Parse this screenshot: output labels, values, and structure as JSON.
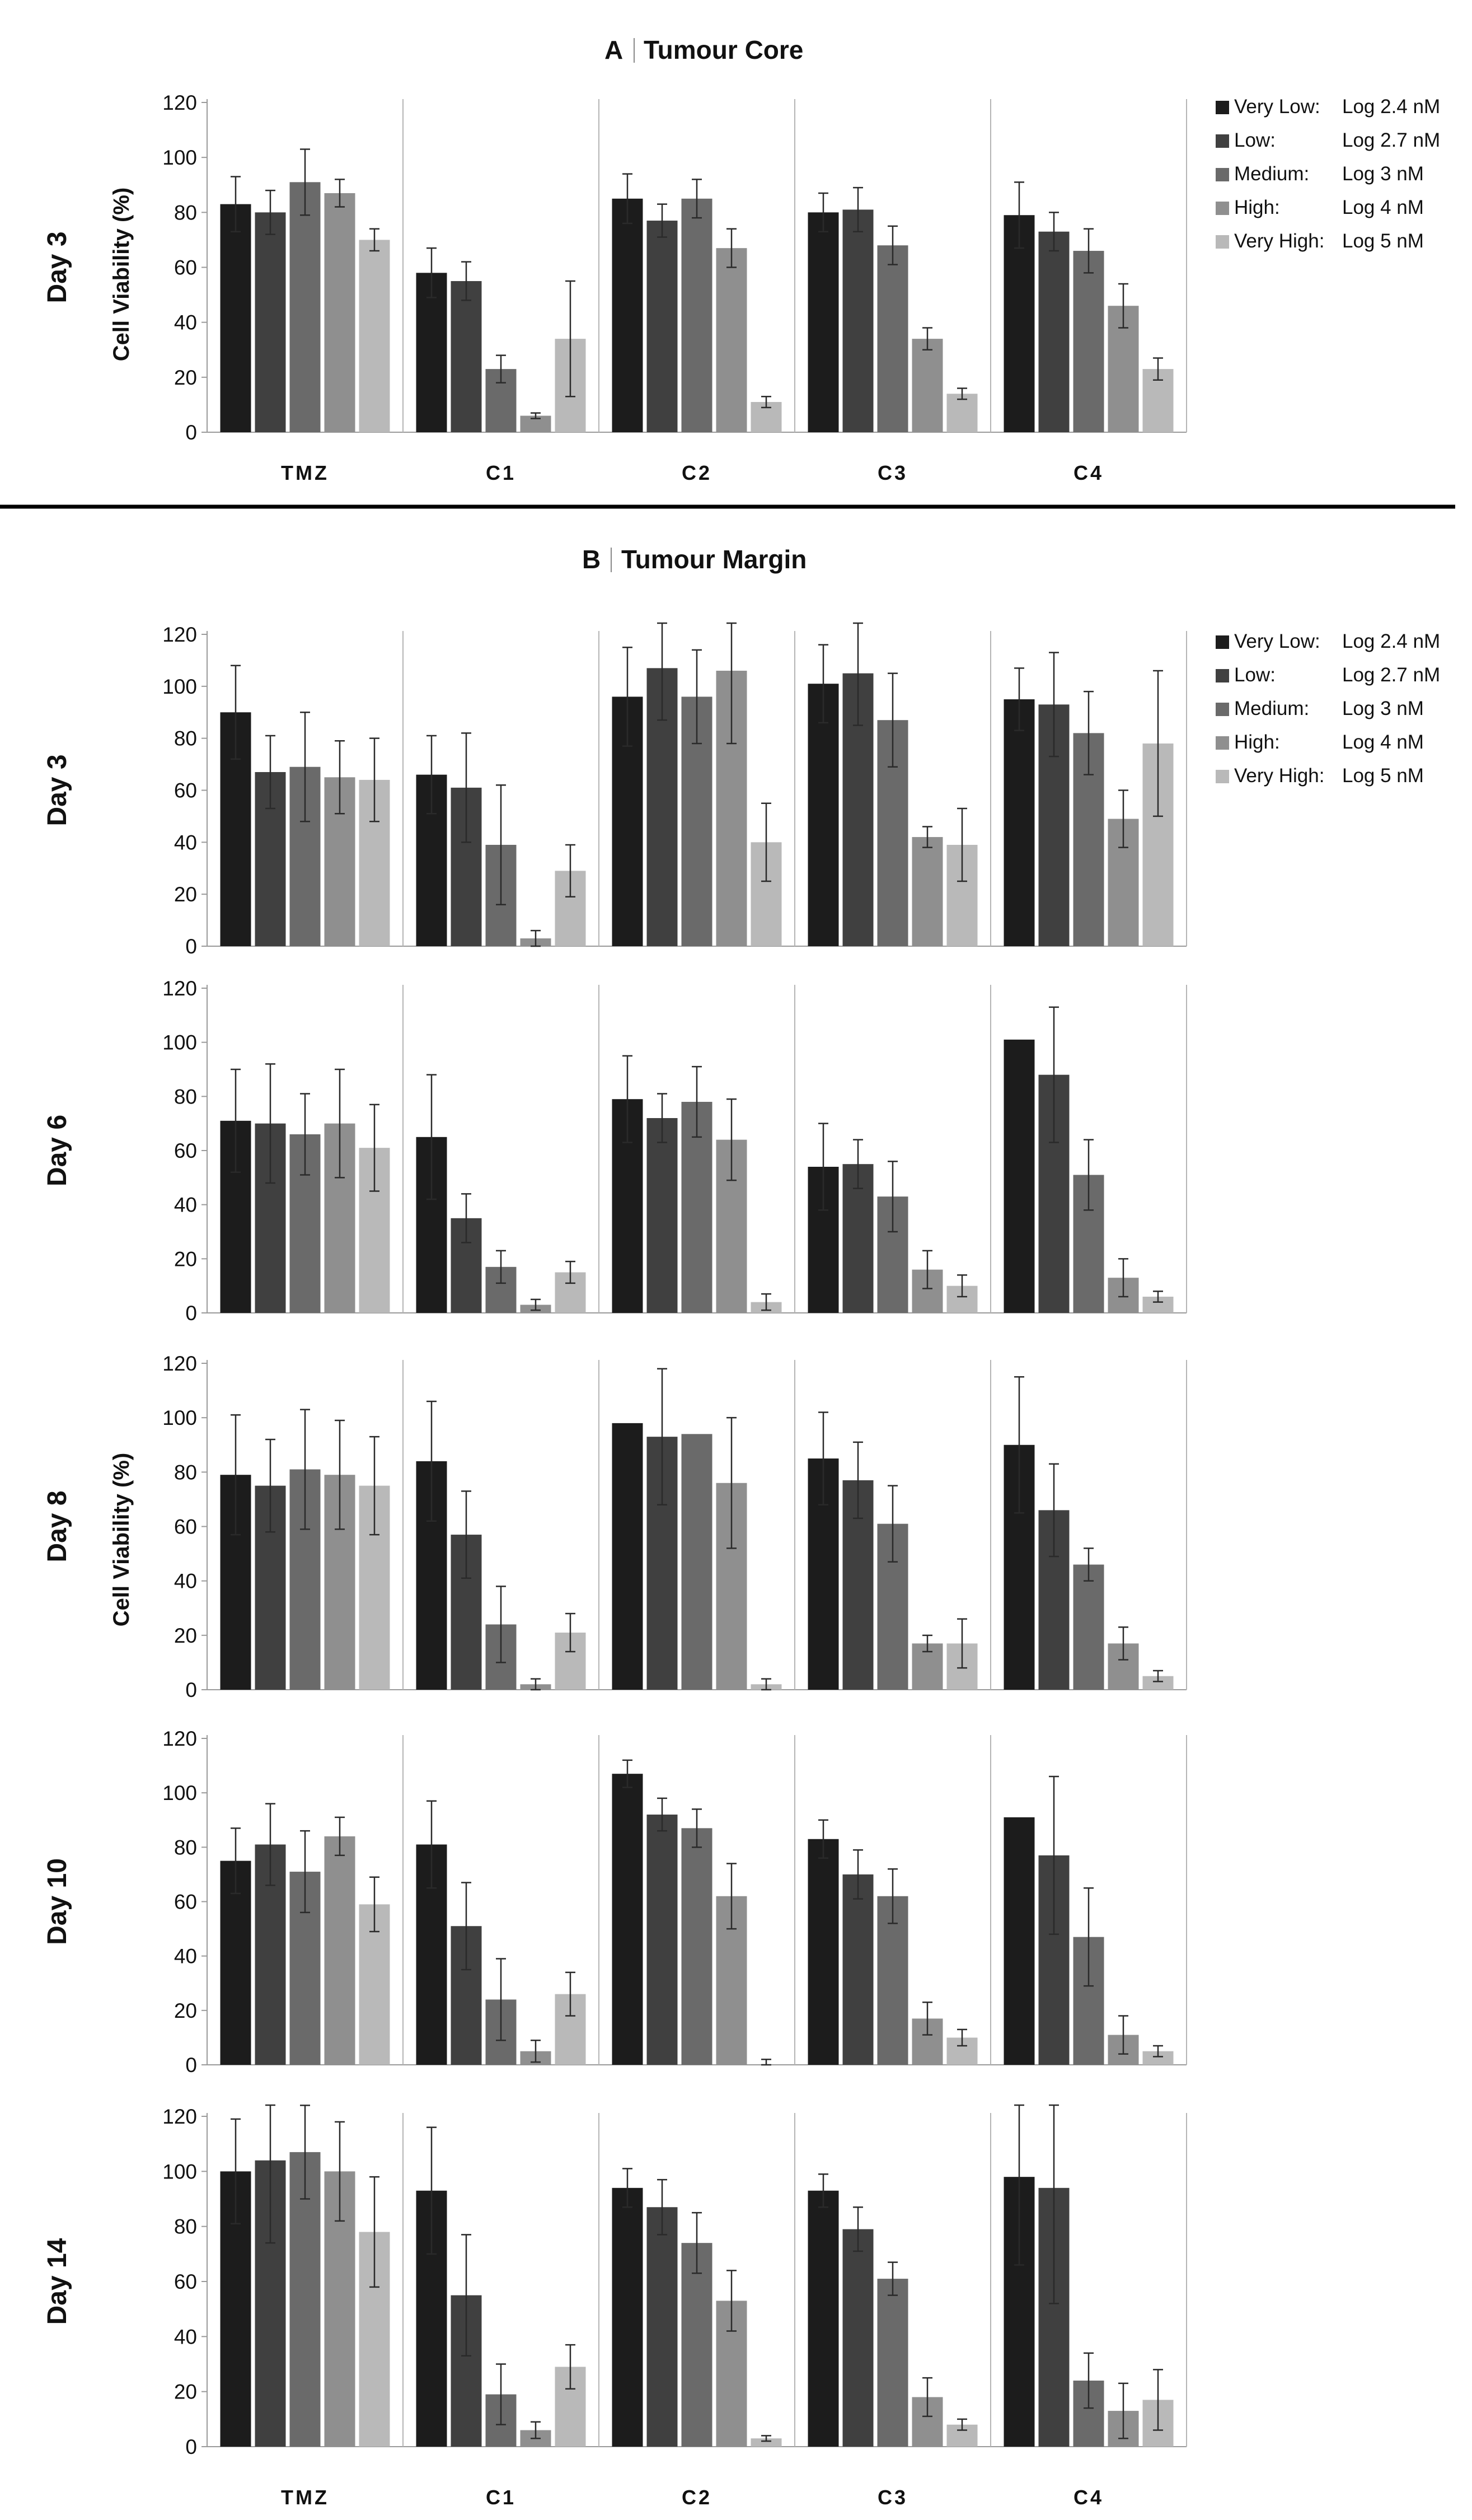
{
  "figure": {
    "legend_entries": [
      {
        "name": "Very Low:",
        "dose": "Log 2.4 nM"
      },
      {
        "name": "Low:",
        "dose": "Log 2.7 nM"
      },
      {
        "name": "Medium:",
        "dose": "Log 3 nM"
      },
      {
        "name": "High:",
        "dose": "Log 4 nM"
      },
      {
        "name": "Very High:",
        "dose": "Log 5 nM"
      }
    ],
    "series_colors": [
      "#1c1c1c",
      "#404040",
      "#6a6a6a",
      "#8f8f8f",
      "#b9b9b9"
    ],
    "categories": [
      "TMZ",
      "C1",
      "C2",
      "C3",
      "C4"
    ],
    "y_ticks": [
      0,
      20,
      40,
      60,
      80,
      100,
      120
    ],
    "ylabel": "Cell Viability (%)"
  },
  "chart_data": [
    {
      "type": "bar",
      "panel_label": "A",
      "title": "Tumour Core",
      "row_label": "Day 3",
      "ylabel": "Cell Viability (%)",
      "ylim": [
        0,
        120
      ],
      "categories": [
        "TMZ",
        "C1",
        "C2",
        "C3",
        "C4"
      ],
      "series": [
        {
          "name": "Very Low: Log 2.4 nM",
          "values": [
            83,
            58,
            85,
            80,
            79
          ],
          "errors": [
            10,
            9,
            9,
            7,
            12
          ]
        },
        {
          "name": "Low: Log 2.7 nM",
          "values": [
            80,
            55,
            77,
            81,
            73
          ],
          "errors": [
            8,
            7,
            6,
            8,
            7
          ]
        },
        {
          "name": "Medium: Log 3 nM",
          "values": [
            91,
            23,
            85,
            68,
            66
          ],
          "errors": [
            12,
            5,
            7,
            7,
            8
          ]
        },
        {
          "name": "High: Log 4 nM",
          "values": [
            87,
            6,
            67,
            34,
            46
          ],
          "errors": [
            5,
            1,
            7,
            4,
            8
          ]
        },
        {
          "name": "Very High: Log 5 nM",
          "values": [
            70,
            34,
            11,
            14,
            23
          ],
          "errors": [
            4,
            21,
            2,
            2,
            4
          ]
        }
      ]
    },
    {
      "type": "bar",
      "panel_label": "B",
      "title": "Tumour Margin",
      "row_label": "Day 3",
      "ylim": [
        0,
        120
      ],
      "categories": [
        "TMZ",
        "C1",
        "C2",
        "C3",
        "C4"
      ],
      "series": [
        {
          "name": "Very Low: Log 2.4 nM",
          "values": [
            90,
            66,
            96,
            101,
            95
          ],
          "errors": [
            18,
            15,
            19,
            15,
            12
          ]
        },
        {
          "name": "Low: Log 2.7 nM",
          "values": [
            67,
            61,
            107,
            105,
            93
          ],
          "errors": [
            14,
            21,
            20,
            20,
            20
          ]
        },
        {
          "name": "Medium: Log 3 nM",
          "values": [
            69,
            39,
            96,
            87,
            82
          ],
          "errors": [
            21,
            23,
            18,
            18,
            16
          ]
        },
        {
          "name": "High: Log 4 nM",
          "values": [
            65,
            3,
            106,
            42,
            49
          ],
          "errors": [
            14,
            3,
            28,
            4,
            11
          ]
        },
        {
          "name": "Very High: Log 5 nM",
          "values": [
            64,
            29,
            40,
            39,
            78
          ],
          "errors": [
            16,
            10,
            15,
            14,
            28
          ]
        }
      ]
    },
    {
      "type": "bar",
      "row_label": "Day 6",
      "ylim": [
        0,
        120
      ],
      "categories": [
        "TMZ",
        "C1",
        "C2",
        "C3",
        "C4"
      ],
      "series": [
        {
          "name": "Very Low: Log 2.4 nM",
          "values": [
            71,
            65,
            79,
            54,
            101
          ],
          "errors": [
            19,
            23,
            16,
            16,
            0
          ]
        },
        {
          "name": "Low: Log 2.7 nM",
          "values": [
            70,
            35,
            72,
            55,
            88
          ],
          "errors": [
            22,
            9,
            9,
            9,
            25
          ]
        },
        {
          "name": "Medium: Log 3 nM",
          "values": [
            66,
            17,
            78,
            43,
            51
          ],
          "errors": [
            15,
            6,
            13,
            13,
            13
          ]
        },
        {
          "name": "High: Log 4 nM",
          "values": [
            70,
            3,
            64,
            16,
            13
          ],
          "errors": [
            20,
            2,
            15,
            7,
            7
          ]
        },
        {
          "name": "Very High: Log 5 nM",
          "values": [
            61,
            15,
            4,
            10,
            6
          ],
          "errors": [
            16,
            4,
            3,
            4,
            2
          ]
        }
      ]
    },
    {
      "type": "bar",
      "row_label": "Day 8",
      "ylabel": "Cell Viability (%)",
      "ylim": [
        0,
        120
      ],
      "categories": [
        "TMZ",
        "C1",
        "C2",
        "C3",
        "C4"
      ],
      "series": [
        {
          "name": "Very Low: Log 2.4 nM",
          "values": [
            79,
            84,
            98,
            85,
            90
          ],
          "errors": [
            22,
            22,
            0,
            17,
            25
          ]
        },
        {
          "name": "Low: Log 2.7 nM",
          "values": [
            75,
            57,
            93,
            77,
            66
          ],
          "errors": [
            17,
            16,
            25,
            14,
            17
          ]
        },
        {
          "name": "Medium: Log 3 nM",
          "values": [
            81,
            24,
            94,
            61,
            46
          ],
          "errors": [
            22,
            14,
            0,
            14,
            6
          ]
        },
        {
          "name": "High: Log 4 nM",
          "values": [
            79,
            2,
            76,
            17,
            17
          ],
          "errors": [
            20,
            2,
            24,
            3,
            6
          ]
        },
        {
          "name": "Very High: Log 5 nM",
          "values": [
            75,
            21,
            2,
            17,
            5
          ],
          "errors": [
            18,
            7,
            2,
            9,
            2
          ]
        }
      ]
    },
    {
      "type": "bar",
      "row_label": "Day 10",
      "ylim": [
        0,
        120
      ],
      "categories": [
        "TMZ",
        "C1",
        "C2",
        "C3",
        "C4"
      ],
      "series": [
        {
          "name": "Very Low: Log 2.4 nM",
          "values": [
            75,
            81,
            107,
            83,
            91
          ],
          "errors": [
            12,
            16,
            5,
            7,
            0
          ]
        },
        {
          "name": "Low: Log 2.7 nM",
          "values": [
            81,
            51,
            92,
            70,
            77
          ],
          "errors": [
            15,
            16,
            6,
            9,
            29
          ]
        },
        {
          "name": "Medium: Log 3 nM",
          "values": [
            71,
            24,
            87,
            62,
            47
          ],
          "errors": [
            15,
            15,
            7,
            10,
            18
          ]
        },
        {
          "name": "High: Log 4 nM",
          "values": [
            84,
            5,
            62,
            17,
            11
          ],
          "errors": [
            7,
            4,
            12,
            6,
            7
          ]
        },
        {
          "name": "Very High: Log 5 nM",
          "values": [
            59,
            26,
            0,
            10,
            5
          ],
          "errors": [
            10,
            8,
            2,
            3,
            2
          ]
        }
      ]
    },
    {
      "type": "bar",
      "row_label": "Day 14",
      "ylim": [
        0,
        120
      ],
      "categories": [
        "TMZ",
        "C1",
        "C2",
        "C3",
        "C4"
      ],
      "series": [
        {
          "name": "Very Low: Log 2.4 nM",
          "values": [
            100,
            93,
            94,
            93,
            98
          ],
          "errors": [
            19,
            23,
            7,
            6,
            32
          ]
        },
        {
          "name": "Low: Log 2.7 nM",
          "values": [
            104,
            55,
            87,
            79,
            94
          ],
          "errors": [
            30,
            22,
            10,
            8,
            42
          ]
        },
        {
          "name": "Medium: Log 3 nM",
          "values": [
            107,
            19,
            74,
            61,
            24
          ],
          "errors": [
            17,
            11,
            11,
            6,
            10
          ]
        },
        {
          "name": "High: Log 4 nM",
          "values": [
            100,
            6,
            53,
            18,
            13
          ],
          "errors": [
            18,
            3,
            11,
            7,
            10
          ]
        },
        {
          "name": "Very High: Log 5 nM",
          "values": [
            78,
            29,
            3,
            8,
            17
          ],
          "errors": [
            20,
            8,
            1,
            2,
            11
          ]
        }
      ]
    }
  ]
}
